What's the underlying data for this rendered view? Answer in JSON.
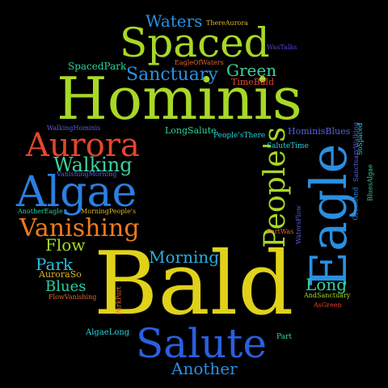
{
  "words": [
    {
      "text": "Bald",
      "color": "#e0d21a"
    },
    {
      "text": "Hominis",
      "color": "#a8d826"
    },
    {
      "text": "Spaced",
      "color": "#a8d826"
    },
    {
      "text": "Eagle",
      "color": "#2a8fe0"
    },
    {
      "text": "Aurora",
      "color": "#e5452a"
    },
    {
      "text": "Algae",
      "color": "#2a7fe0"
    },
    {
      "text": "Salute",
      "color": "#2a5fe0"
    },
    {
      "text": "People's",
      "color": "#a8d826"
    },
    {
      "text": "Vanishing",
      "color": "#f07a1a"
    },
    {
      "text": "Walking",
      "color": "#3ad2a0"
    },
    {
      "text": "Sanctuary",
      "color": "#2a8fe0"
    },
    {
      "text": "Waters",
      "color": "#2a8fe0"
    },
    {
      "text": "Green",
      "color": "#3ad2a0"
    },
    {
      "text": "Morning",
      "color": "#2aaee0"
    },
    {
      "text": "Flow",
      "color": "#a8d826"
    },
    {
      "text": "Park",
      "color": "#2abfe0"
    },
    {
      "text": "Long",
      "color": "#3ad2a0"
    },
    {
      "text": "Blues",
      "color": "#2ad2a0"
    },
    {
      "text": "Another",
      "color": "#2a8fe0"
    },
    {
      "text": "AuroraSo",
      "color": "#e0b420"
    },
    {
      "text": "SpacedPark",
      "color": "#2ad2a0"
    },
    {
      "text": "TimeBald",
      "color": "#e5452a"
    },
    {
      "text": "EagleOfWaters",
      "color": "#e06a2a"
    },
    {
      "text": "ThereAurora",
      "color": "#e0b420"
    },
    {
      "text": "WasTalks",
      "color": "#5a3ee0"
    },
    {
      "text": "LongSalute",
      "color": "#2ad2a0"
    },
    {
      "text": "People'sThere",
      "color": "#2ad2e0"
    },
    {
      "text": "WalkingHominis",
      "color": "#5a5ee0"
    },
    {
      "text": "HominisBlues",
      "color": "#5a5ee0"
    },
    {
      "text": "SaluteTime",
      "color": "#2ad2e0"
    },
    {
      "text": "VanishingMorning",
      "color": "#5a5ee0"
    },
    {
      "text": "AnotherEagle",
      "color": "#2ad2a0"
    },
    {
      "text": "MorningPeople's",
      "color": "#e0b420"
    },
    {
      "text": "PartWas",
      "color": "#e06a2a"
    },
    {
      "text": "WatersFlow",
      "color": "#5a5ee0"
    },
    {
      "text": "FlowVanishing",
      "color": "#e06a2a"
    },
    {
      "text": "ParkPart",
      "color": "#e06a2a"
    },
    {
      "text": "AndSanctuary",
      "color": "#a8d826"
    },
    {
      "text": "AsGreen",
      "color": "#e5452a"
    },
    {
      "text": "AlgaeLong",
      "color": "#2ad2e0"
    },
    {
      "text": "Part",
      "color": "#3ad2a0"
    },
    {
      "text": "SanctuaryWalking",
      "color": "#5a5ee0"
    },
    {
      "text": "SoSpaced",
      "color": "#2ad2e0"
    },
    {
      "text": "GreenAnd",
      "color": "#2a8fe0"
    },
    {
      "text": "BluesAlgae",
      "color": "#3ad2a0"
    }
  ]
}
